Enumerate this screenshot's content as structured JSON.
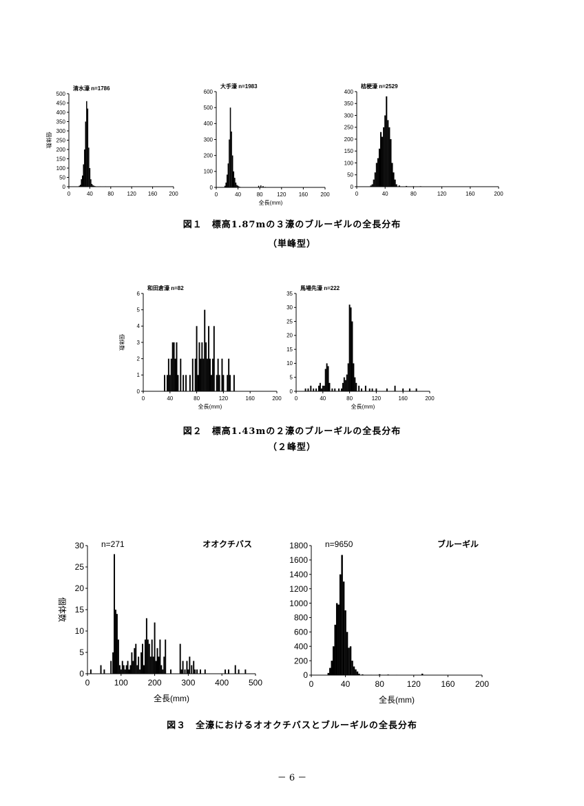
{
  "figure1": {
    "caption": "図１　標高1.87mの３濠のブルーギルの全長分布",
    "subcaption": "（単峰型）",
    "xlabel": "全長(mm)",
    "ylabel": "個体数"
  },
  "figure2": {
    "caption": "図２　標高1.43mの２濠のブルーギルの全長分布",
    "subcaption": "（２峰型）",
    "xlabel": "全長(mm)",
    "ylabel": "個体数"
  },
  "figure3": {
    "caption": "図３　全濠におけるオオクチバスとブルーギルの全長分布",
    "xlabel": "全長(mm)",
    "ylabel": "個体数"
  },
  "page_number": "－ 6 －",
  "chart_data": [
    {
      "id": "c1",
      "type": "bar",
      "title": "清水濠 n=1786",
      "xlabel": "",
      "ylabel": "個体数",
      "xlim": [
        0,
        200
      ],
      "ylim": [
        0,
        500
      ],
      "xticks": [
        0,
        40,
        80,
        120,
        160,
        200
      ],
      "yticks": [
        0,
        50,
        100,
        150,
        200,
        250,
        300,
        350,
        400,
        450,
        500
      ],
      "x": [
        20,
        22,
        24,
        26,
        28,
        30,
        32,
        34,
        36,
        38,
        40,
        42,
        44,
        46,
        48,
        50,
        60,
        70,
        80,
        90,
        100
      ],
      "values": [
        5,
        10,
        40,
        60,
        120,
        200,
        350,
        460,
        420,
        210,
        100,
        40,
        15,
        8,
        5,
        3,
        2,
        2,
        1,
        1,
        1
      ]
    },
    {
      "id": "c2",
      "type": "bar",
      "title": "大手濠 n=1983",
      "xlabel": "全長(mm)",
      "ylabel": "",
      "xlim": [
        0,
        200
      ],
      "ylim": [
        0,
        600
      ],
      "xticks": [
        0,
        40,
        80,
        120,
        160,
        200
      ],
      "yticks": [
        0,
        100,
        200,
        300,
        400,
        500,
        600
      ],
      "x": [
        16,
        18,
        20,
        22,
        24,
        26,
        28,
        30,
        32,
        34,
        36,
        38,
        40,
        42,
        44,
        50,
        60,
        70,
        78,
        82,
        86,
        90
      ],
      "values": [
        10,
        30,
        80,
        150,
        300,
        500,
        350,
        200,
        100,
        60,
        30,
        15,
        10,
        5,
        3,
        2,
        2,
        2,
        10,
        12,
        8,
        3
      ]
    },
    {
      "id": "c3",
      "type": "bar",
      "title": "桔梗濠 n=2529",
      "xlabel": "",
      "ylabel": "",
      "xlim": [
        0,
        200
      ],
      "ylim": [
        0,
        400
      ],
      "xticks": [
        0,
        40,
        80,
        120,
        160,
        200
      ],
      "yticks": [
        0,
        50,
        100,
        150,
        200,
        250,
        300,
        350,
        400
      ],
      "x": [
        20,
        22,
        24,
        26,
        28,
        30,
        32,
        34,
        36,
        38,
        40,
        42,
        44,
        46,
        48,
        50,
        52,
        54,
        56,
        60,
        70,
        80,
        90,
        100
      ],
      "values": [
        5,
        10,
        30,
        60,
        100,
        120,
        160,
        230,
        210,
        250,
        300,
        380,
        280,
        250,
        200,
        100,
        60,
        30,
        10,
        5,
        3,
        2,
        2,
        1
      ]
    },
    {
      "id": "c4",
      "type": "bar",
      "title": "和田倉濠 n=82",
      "xlabel": "全長(mm)",
      "ylabel": "個体数",
      "xlim": [
        0,
        200
      ],
      "ylim": [
        0,
        6
      ],
      "xticks": [
        0,
        40,
        80,
        120,
        160,
        200
      ],
      "yticks": [
        0,
        1,
        2,
        3,
        4,
        5,
        6
      ],
      "x": [
        32,
        36,
        38,
        40,
        42,
        44,
        46,
        48,
        50,
        52,
        56,
        60,
        64,
        70,
        74,
        78,
        80,
        82,
        84,
        86,
        88,
        90,
        92,
        94,
        96,
        98,
        100,
        102,
        104,
        106,
        110,
        112,
        114,
        118,
        120,
        126,
        128,
        130,
        136
      ],
      "values": [
        1,
        1,
        2,
        1,
        2,
        3,
        3,
        2,
        3,
        1,
        2,
        1,
        1,
        1,
        2,
        2,
        4,
        1,
        3,
        2,
        3,
        2,
        5,
        3,
        2,
        4,
        2,
        1,
        2,
        4,
        1,
        2,
        1,
        2,
        1,
        1,
        2,
        1,
        1
      ]
    },
    {
      "id": "c5",
      "type": "bar",
      "title": "馬場先濠 n=222",
      "xlabel": "全長(mm)",
      "ylabel": "",
      "xlim": [
        0,
        200
      ],
      "ylim": [
        0,
        35
      ],
      "xticks": [
        0,
        40,
        80,
        120,
        160,
        200
      ],
      "yticks": [
        0,
        5,
        10,
        15,
        20,
        25,
        30,
        35
      ],
      "x": [
        14,
        18,
        22,
        26,
        30,
        34,
        36,
        38,
        40,
        42,
        44,
        46,
        48,
        50,
        54,
        58,
        64,
        68,
        70,
        72,
        74,
        76,
        78,
        80,
        82,
        84,
        86,
        88,
        90,
        94,
        98,
        104,
        110,
        114,
        120,
        136,
        148,
        160,
        170,
        180
      ],
      "values": [
        1,
        1,
        2,
        1,
        1,
        2,
        3,
        1,
        2,
        2,
        8,
        10,
        9,
        3,
        1,
        1,
        1,
        1,
        3,
        5,
        4,
        6,
        10,
        31,
        30,
        25,
        10,
        5,
        3,
        2,
        1,
        2,
        1,
        1,
        1,
        1,
        2,
        1,
        1,
        1
      ]
    },
    {
      "id": "c6",
      "type": "bar",
      "title": "オオクチバス",
      "annotation": "n=271",
      "xlabel": "全長(mm)",
      "ylabel": "個体数",
      "xlim": [
        0,
        500
      ],
      "ylim": [
        0,
        30
      ],
      "xticks": [
        0,
        100,
        200,
        300,
        400,
        500
      ],
      "yticks": [
        0,
        5,
        10,
        15,
        20,
        25,
        30
      ],
      "x": [
        10,
        40,
        50,
        70,
        76,
        80,
        84,
        88,
        92,
        96,
        100,
        104,
        108,
        112,
        116,
        120,
        124,
        128,
        132,
        136,
        140,
        144,
        148,
        152,
        156,
        160,
        164,
        168,
        172,
        176,
        180,
        184,
        188,
        192,
        196,
        200,
        204,
        208,
        212,
        216,
        220,
        224,
        228,
        232,
        248,
        276,
        280,
        284,
        290,
        296,
        300,
        304,
        310,
        316,
        320,
        326,
        336,
        350,
        410,
        420,
        440,
        450,
        470
      ],
      "values": [
        1,
        2,
        1,
        3,
        5,
        28,
        15,
        14,
        8,
        2,
        1,
        3,
        2,
        1,
        2,
        3,
        1,
        2,
        5,
        3,
        6,
        7,
        2,
        4,
        1,
        5,
        7,
        2,
        8,
        13,
        8,
        7,
        4,
        8,
        4,
        12,
        3,
        6,
        4,
        8,
        2,
        1,
        4,
        8,
        1,
        7,
        1,
        3,
        1,
        3,
        1,
        4,
        2,
        3,
        1,
        1,
        1,
        1,
        1,
        1,
        2,
        1,
        1
      ]
    },
    {
      "id": "c7",
      "type": "bar",
      "title": "ブルーギル",
      "annotation": "n=9650",
      "xlabel": "全長(mm)",
      "ylabel": "",
      "xlim": [
        0,
        200
      ],
      "ylim": [
        0,
        1800
      ],
      "xticks": [
        0,
        40,
        80,
        120,
        160,
        200
      ],
      "yticks": [
        0,
        200,
        400,
        600,
        800,
        1000,
        1200,
        1400,
        1600,
        1800
      ],
      "x": [
        20,
        22,
        24,
        26,
        28,
        30,
        32,
        34,
        36,
        38,
        40,
        42,
        44,
        46,
        48,
        50,
        52,
        54,
        56,
        60,
        70,
        80,
        90,
        100,
        110,
        130
      ],
      "values": [
        30,
        100,
        200,
        400,
        700,
        1000,
        980,
        1400,
        1670,
        1300,
        900,
        600,
        380,
        400,
        200,
        120,
        80,
        50,
        20,
        10,
        5,
        12,
        8,
        5,
        3,
        20
      ]
    }
  ]
}
